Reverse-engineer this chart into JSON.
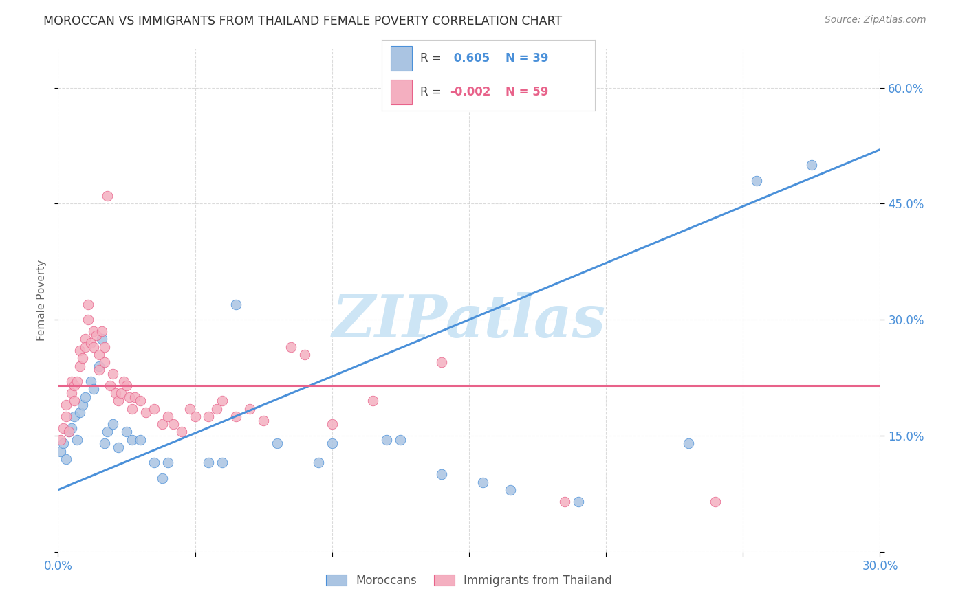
{
  "title": "MOROCCAN VS IMMIGRANTS FROM THAILAND FEMALE POVERTY CORRELATION CHART",
  "source": "Source: ZipAtlas.com",
  "ylabel": "Female Poverty",
  "xlim": [
    0.0,
    0.3
  ],
  "ylim": [
    0.0,
    0.65
  ],
  "moroccan_color": "#aac4e2",
  "thailand_color": "#f4afc0",
  "moroccan_R": 0.605,
  "moroccan_N": 39,
  "thailand_R": -0.002,
  "thailand_N": 59,
  "moroccan_scatter": [
    [
      0.001,
      0.13
    ],
    [
      0.002,
      0.14
    ],
    [
      0.003,
      0.12
    ],
    [
      0.004,
      0.155
    ],
    [
      0.005,
      0.16
    ],
    [
      0.006,
      0.175
    ],
    [
      0.007,
      0.145
    ],
    [
      0.008,
      0.18
    ],
    [
      0.009,
      0.19
    ],
    [
      0.01,
      0.2
    ],
    [
      0.012,
      0.22
    ],
    [
      0.013,
      0.21
    ],
    [
      0.015,
      0.24
    ],
    [
      0.016,
      0.275
    ],
    [
      0.017,
      0.14
    ],
    [
      0.018,
      0.155
    ],
    [
      0.02,
      0.165
    ],
    [
      0.022,
      0.135
    ],
    [
      0.025,
      0.155
    ],
    [
      0.027,
      0.145
    ],
    [
      0.03,
      0.145
    ],
    [
      0.035,
      0.115
    ],
    [
      0.038,
      0.095
    ],
    [
      0.04,
      0.115
    ],
    [
      0.055,
      0.115
    ],
    [
      0.06,
      0.115
    ],
    [
      0.065,
      0.32
    ],
    [
      0.08,
      0.14
    ],
    [
      0.095,
      0.115
    ],
    [
      0.1,
      0.14
    ],
    [
      0.12,
      0.145
    ],
    [
      0.125,
      0.145
    ],
    [
      0.14,
      0.1
    ],
    [
      0.155,
      0.09
    ],
    [
      0.165,
      0.08
    ],
    [
      0.19,
      0.065
    ],
    [
      0.23,
      0.14
    ],
    [
      0.255,
      0.48
    ],
    [
      0.275,
      0.5
    ]
  ],
  "thailand_scatter": [
    [
      0.001,
      0.145
    ],
    [
      0.002,
      0.16
    ],
    [
      0.003,
      0.175
    ],
    [
      0.003,
      0.19
    ],
    [
      0.004,
      0.155
    ],
    [
      0.005,
      0.205
    ],
    [
      0.005,
      0.22
    ],
    [
      0.006,
      0.215
    ],
    [
      0.006,
      0.195
    ],
    [
      0.007,
      0.22
    ],
    [
      0.008,
      0.24
    ],
    [
      0.008,
      0.26
    ],
    [
      0.009,
      0.25
    ],
    [
      0.01,
      0.275
    ],
    [
      0.01,
      0.265
    ],
    [
      0.011,
      0.32
    ],
    [
      0.011,
      0.3
    ],
    [
      0.012,
      0.27
    ],
    [
      0.013,
      0.285
    ],
    [
      0.013,
      0.265
    ],
    [
      0.014,
      0.28
    ],
    [
      0.015,
      0.255
    ],
    [
      0.015,
      0.235
    ],
    [
      0.016,
      0.285
    ],
    [
      0.017,
      0.245
    ],
    [
      0.017,
      0.265
    ],
    [
      0.018,
      0.46
    ],
    [
      0.019,
      0.215
    ],
    [
      0.02,
      0.23
    ],
    [
      0.021,
      0.205
    ],
    [
      0.022,
      0.195
    ],
    [
      0.023,
      0.205
    ],
    [
      0.024,
      0.22
    ],
    [
      0.025,
      0.215
    ],
    [
      0.026,
      0.2
    ],
    [
      0.027,
      0.185
    ],
    [
      0.028,
      0.2
    ],
    [
      0.03,
      0.195
    ],
    [
      0.032,
      0.18
    ],
    [
      0.035,
      0.185
    ],
    [
      0.038,
      0.165
    ],
    [
      0.04,
      0.175
    ],
    [
      0.042,
      0.165
    ],
    [
      0.045,
      0.155
    ],
    [
      0.048,
      0.185
    ],
    [
      0.05,
      0.175
    ],
    [
      0.055,
      0.175
    ],
    [
      0.058,
      0.185
    ],
    [
      0.06,
      0.195
    ],
    [
      0.065,
      0.175
    ],
    [
      0.07,
      0.185
    ],
    [
      0.075,
      0.17
    ],
    [
      0.085,
      0.265
    ],
    [
      0.09,
      0.255
    ],
    [
      0.1,
      0.165
    ],
    [
      0.115,
      0.195
    ],
    [
      0.14,
      0.245
    ],
    [
      0.185,
      0.065
    ],
    [
      0.24,
      0.065
    ]
  ],
  "moroccan_line_color": "#4a90d9",
  "thailand_line_color": "#e8628a",
  "moroccan_trend": [
    0.0,
    0.3,
    0.08,
    0.52
  ],
  "thailand_trend_y": 0.215,
  "watermark": "ZIPatlas",
  "watermark_color": "#cde5f5",
  "background_color": "#ffffff",
  "grid_color": "#cccccc"
}
